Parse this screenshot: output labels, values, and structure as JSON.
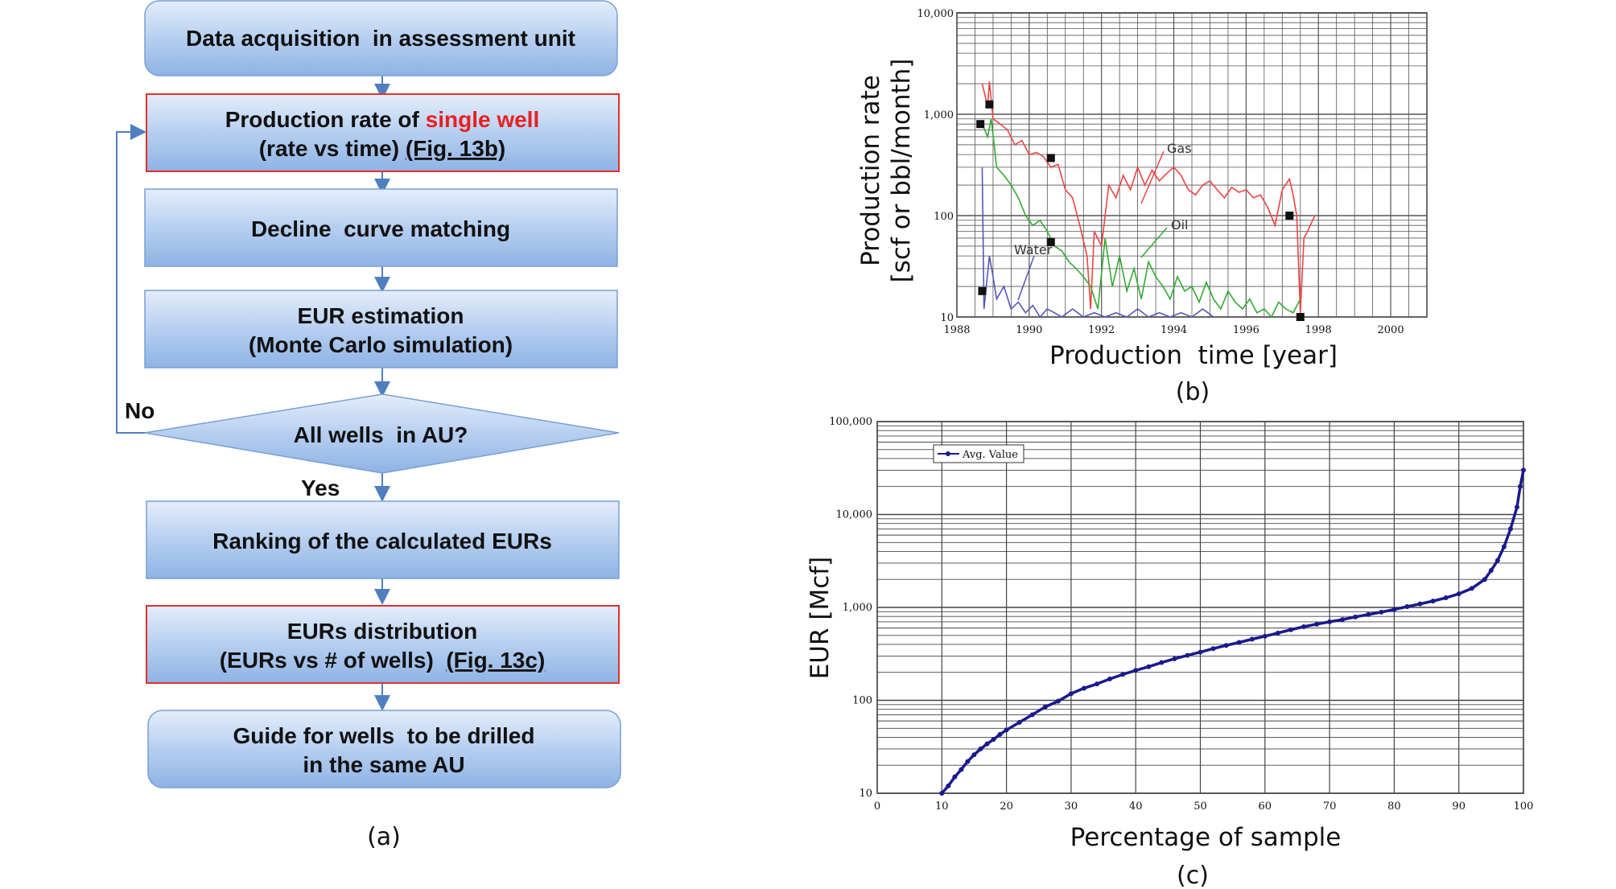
{
  "flowchart": {
    "caption": "(a)",
    "steps": [
      {
        "line1": "Data acquisition  in assessment unit"
      },
      {
        "line1a": "Production rate of ",
        "line1b": "single well",
        "line2": "(rate vs time) ",
        "fig": "(Fig. 13b)"
      },
      {
        "line1": "Decline  curve matching"
      },
      {
        "line1": "EUR estimation",
        "line2": "(Monte Carlo simulation)"
      },
      {
        "line1": "All wells  in AU?"
      },
      {
        "line1": "Ranking of the calculated EURs"
      },
      {
        "line1": "EURs distribution",
        "line2": "(EURs vs # of wells)  ",
        "fig": "(Fig. 13c)"
      },
      {
        "line1": "Guide for wells  to be drilled",
        "line2": "in the same AU"
      }
    ],
    "no_label": "No",
    "yes_label": "Yes"
  },
  "chart_data": [
    {
      "type": "line",
      "caption": "(b)",
      "xlabel": "Production  time [year]",
      "ylabel_line1": "Production rate",
      "ylabel_line2": "[scf or bbl/month]",
      "yscale": "log",
      "xlim": [
        1988,
        2001
      ],
      "ylim": [
        10,
        10000
      ],
      "x_ticks": [
        "1988",
        "1990",
        "1992",
        "1994",
        "1996",
        "1998",
        "2000"
      ],
      "y_ticks": [
        "10",
        "100",
        "1,000",
        "10,000"
      ],
      "grid": true,
      "series": [
        {
          "name": "Gas",
          "color": "#ee4444",
          "x": [
            1988.7,
            1988.85,
            1988.9,
            1989.0,
            1989.2,
            1989.4,
            1989.6,
            1989.8,
            1990.0,
            1990.2,
            1990.4,
            1990.6,
            1990.8,
            1991.0,
            1991.2,
            1991.4,
            1991.6,
            1991.7,
            1991.8,
            1992.0,
            1992.2,
            1992.4,
            1992.6,
            1992.8,
            1993.0,
            1993.2,
            1993.4,
            1993.6,
            1993.8,
            1994.0,
            1994.2,
            1994.4,
            1994.6,
            1994.8,
            1995.0,
            1995.2,
            1995.4,
            1995.6,
            1995.8,
            1996.0,
            1996.2,
            1996.4,
            1996.6,
            1996.8,
            1997.0,
            1997.2,
            1997.3,
            1997.4,
            1997.5,
            1997.6,
            1997.7,
            1997.9
          ],
          "y": [
            2000,
            1200,
            2100,
            900,
            800,
            700,
            500,
            550,
            400,
            420,
            380,
            300,
            320,
            180,
            150,
            80,
            40,
            12,
            70,
            50,
            200,
            150,
            250,
            180,
            300,
            200,
            280,
            220,
            260,
            300,
            250,
            180,
            160,
            200,
            220,
            180,
            150,
            190,
            170,
            180,
            150,
            160,
            120,
            80,
            180,
            230,
            160,
            100,
            11,
            60,
            70,
            100
          ]
        },
        {
          "name": "Oil",
          "color": "#33aa33",
          "x": [
            1988.7,
            1988.85,
            1988.95,
            1989.1,
            1989.3,
            1989.5,
            1989.7,
            1989.9,
            1990.1,
            1990.3,
            1990.5,
            1990.7,
            1990.9,
            1991.1,
            1991.3,
            1991.5,
            1991.7,
            1991.9,
            1992.1,
            1992.3,
            1992.5,
            1992.7,
            1992.9,
            1993.1,
            1993.3,
            1993.5,
            1993.7,
            1993.9,
            1994.1,
            1994.3,
            1994.5,
            1994.7,
            1994.9,
            1995.1,
            1995.3,
            1995.5,
            1995.7,
            1995.9,
            1996.1,
            1996.3,
            1996.5,
            1996.7,
            1996.9,
            1997.1,
            1997.3,
            1997.5
          ],
          "y": [
            800,
            600,
            900,
            300,
            250,
            200,
            150,
            100,
            80,
            90,
            70,
            50,
            45,
            35,
            30,
            25,
            20,
            12,
            60,
            20,
            40,
            18,
            30,
            15,
            35,
            25,
            20,
            15,
            25,
            18,
            20,
            14,
            22,
            15,
            12,
            18,
            14,
            12,
            15,
            11,
            12,
            10,
            14,
            12,
            11,
            15
          ]
        },
        {
          "name": "Water",
          "color": "#5555bb",
          "x": [
            1988.7,
            1988.75,
            1988.8,
            1988.9,
            1989.0,
            1989.1,
            1989.3,
            1989.5,
            1989.7,
            1989.9,
            1990.1,
            1990.3,
            1990.5,
            1990.7,
            1990.9,
            1991.2,
            1991.5,
            1991.8,
            1992.1,
            1992.4,
            1992.7,
            1993.0,
            1993.3,
            1993.6,
            1993.9,
            1994.2,
            1994.5,
            1994.8,
            1995.1
          ],
          "y": [
            300,
            12,
            18,
            40,
            25,
            15,
            20,
            12,
            14,
            11,
            13,
            10,
            12,
            11,
            10,
            12,
            10,
            11,
            10,
            11,
            10,
            12,
            10,
            11,
            10,
            11,
            10,
            12,
            10
          ]
        }
      ],
      "markers": [
        [
          1988.65,
          800
        ],
        [
          1988.9,
          1250
        ],
        [
          1990.6,
          370
        ],
        [
          1997.2,
          100
        ],
        [
          1997.5,
          10
        ],
        [
          1988.7,
          18
        ],
        [
          1990.6,
          55
        ]
      ],
      "annotations": [
        "Gas",
        "Oil",
        "Water"
      ]
    },
    {
      "type": "scatter",
      "caption": "(c)",
      "xlabel": "Percentage of sample",
      "ylabel": "EUR [Mcf]",
      "yscale": "log",
      "xlim": [
        0,
        100
      ],
      "ylim": [
        10,
        100000
      ],
      "x_ticks": [
        "0",
        "10",
        "20",
        "30",
        "40",
        "50",
        "60",
        "70",
        "80",
        "90",
        "100"
      ],
      "y_ticks": [
        "10",
        "100",
        "1,000",
        "10,000",
        "100,000"
      ],
      "grid": true,
      "legend": "Avg. Value",
      "legend_position": "top-left",
      "series": [
        {
          "name": "Avg. Value",
          "color": "#1a1a8c",
          "x": [
            10,
            11,
            12,
            13,
            14,
            15,
            16,
            17,
            18,
            19,
            20,
            22,
            24,
            26,
            28,
            30,
            32,
            34,
            36,
            38,
            40,
            42,
            44,
            46,
            48,
            50,
            52,
            54,
            56,
            58,
            60,
            62,
            64,
            66,
            68,
            70,
            72,
            74,
            76,
            78,
            80,
            82,
            84,
            86,
            88,
            90,
            92,
            94,
            95,
            96,
            97,
            98,
            99,
            99.5,
            100
          ],
          "y": [
            10,
            12,
            15,
            18,
            22,
            26,
            30,
            34,
            38,
            43,
            48,
            58,
            70,
            85,
            98,
            118,
            135,
            150,
            170,
            190,
            210,
            230,
            255,
            280,
            305,
            330,
            360,
            390,
            420,
            455,
            490,
            530,
            575,
            620,
            660,
            700,
            740,
            790,
            840,
            890,
            950,
            1020,
            1090,
            1170,
            1270,
            1400,
            1600,
            2000,
            2500,
            3200,
            4500,
            7000,
            12000,
            20000,
            30000
          ]
        }
      ]
    }
  ]
}
